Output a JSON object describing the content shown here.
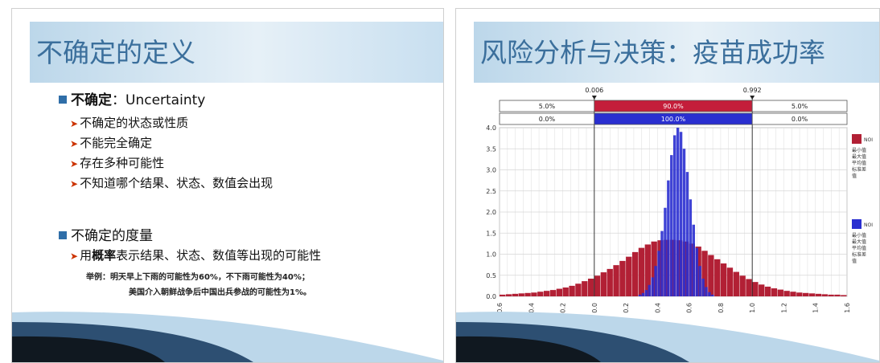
{
  "slide1": {
    "title": "不确定的定义",
    "bullet1_bold": "不确定",
    "bullet1_rest": "：Uncertainty",
    "subbullets": [
      "不确定的状态或性质",
      "不能完全确定",
      "存在多种可能性",
      "不知道哪个结果、状态、数值会出现"
    ],
    "bullet2": "不确定的度量",
    "sub2_pre": "用",
    "sub2_bold": "概率",
    "sub2_rest": "表示结果、状态、数值等出现的可能性",
    "example_line1": "举例：明天早上下雨的可能性为60%，不下雨可能性为40%；",
    "example_line2": "美国介入朝鲜战争后中国出兵参战的可能性为1%。"
  },
  "slide2": {
    "title": "风险分析与决策：疫苗成功率"
  },
  "chart_data": {
    "type": "bar",
    "xlim": [
      -0.6,
      1.6
    ],
    "ylim": [
      0.0,
      4.0
    ],
    "x_ticks": [
      "-0.6",
      "-0.4",
      "-0.2",
      "0.0",
      "0.2",
      "0.4",
      "0.6",
      "0.8",
      "1.0",
      "1.2",
      "1.4",
      "1.6"
    ],
    "y_ticks": [
      "0.0",
      "0.5",
      "1.0",
      "1.5",
      "2.0",
      "2.5",
      "3.0",
      "3.5",
      "4.0"
    ],
    "markers": [
      "0.006",
      "0.992"
    ],
    "row1": [
      "5.0%",
      "90.0%",
      "5.0%"
    ],
    "row2": [
      "0.0%",
      "100.0%",
      "0.0%"
    ],
    "legend_colors": [
      "#b22035",
      "#2a2fd0"
    ],
    "legend_label_1": "NOI",
    "legend_label_2": "NOI",
    "legend_stats": [
      "最小值",
      "最大值",
      "平均值",
      "标准差",
      "值"
    ],
    "series": [
      {
        "color": "#b22035",
        "x": [
          -0.58,
          -0.54,
          -0.5,
          -0.46,
          -0.42,
          -0.38,
          -0.34,
          -0.3,
          -0.26,
          -0.22,
          -0.18,
          -0.14,
          -0.1,
          -0.06,
          -0.02,
          0.02,
          0.06,
          0.1,
          0.14,
          0.18,
          0.22,
          0.26,
          0.3,
          0.34,
          0.38,
          0.42,
          0.46,
          0.5,
          0.54,
          0.58,
          0.62,
          0.66,
          0.7,
          0.74,
          0.78,
          0.82,
          0.86,
          0.9,
          0.94,
          0.98,
          1.02,
          1.06,
          1.1,
          1.14,
          1.18,
          1.22,
          1.26,
          1.3,
          1.34,
          1.38,
          1.42,
          1.46,
          1.5,
          1.54,
          1.58
        ],
        "values": [
          0.04,
          0.05,
          0.06,
          0.07,
          0.08,
          0.09,
          0.11,
          0.13,
          0.15,
          0.18,
          0.21,
          0.25,
          0.3,
          0.36,
          0.42,
          0.49,
          0.57,
          0.65,
          0.74,
          0.84,
          0.94,
          1.05,
          1.15,
          1.23,
          1.3,
          1.33,
          1.34,
          1.34,
          1.33,
          1.3,
          1.25,
          1.18,
          1.08,
          0.98,
          0.88,
          0.78,
          0.68,
          0.58,
          0.49,
          0.41,
          0.34,
          0.28,
          0.23,
          0.19,
          0.16,
          0.13,
          0.11,
          0.09,
          0.08,
          0.07,
          0.06,
          0.05,
          0.04,
          0.04,
          0.03
        ]
      },
      {
        "color": "#2a2fd0",
        "x": [
          0.29,
          0.31,
          0.33,
          0.35,
          0.37,
          0.39,
          0.41,
          0.43,
          0.45,
          0.47,
          0.49,
          0.51,
          0.53,
          0.55,
          0.57,
          0.59,
          0.61,
          0.63,
          0.65,
          0.67,
          0.69,
          0.71,
          0.73,
          0.75
        ],
        "values": [
          0.04,
          0.08,
          0.15,
          0.27,
          0.45,
          0.72,
          1.08,
          1.55,
          2.1,
          2.75,
          3.35,
          3.82,
          4.0,
          3.9,
          3.5,
          2.95,
          2.3,
          1.7,
          1.15,
          0.72,
          0.42,
          0.22,
          0.1,
          0.04
        ]
      }
    ]
  }
}
